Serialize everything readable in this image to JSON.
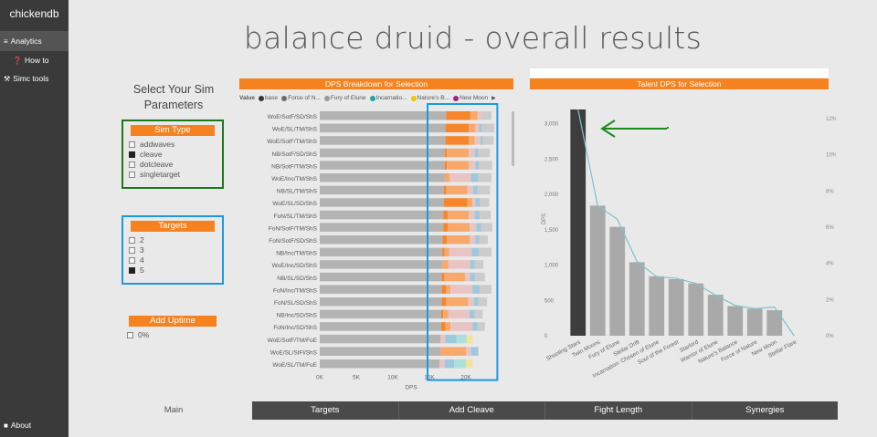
{
  "sidebar": {
    "brand": "chickendb",
    "items": [
      {
        "label": "Analytics",
        "icon": "bar-chart-icon",
        "glyph": "≡"
      },
      {
        "label": "How to",
        "icon": "help-icon",
        "glyph": "❓"
      },
      {
        "label": "Simc tools",
        "icon": "toolbox-icon",
        "glyph": "⚒"
      }
    ],
    "about": {
      "label": "About",
      "icon": "chat-icon",
      "glyph": "■"
    }
  },
  "page_title": "balance druid - overall results",
  "params_title": "Select Your Sim Parameters",
  "slicers": {
    "sim_type": {
      "title": "Sim Type",
      "options": [
        {
          "label": "addwaves",
          "checked": false
        },
        {
          "label": "cleave",
          "checked": true
        },
        {
          "label": "dotcleave",
          "checked": false
        },
        {
          "label": "singletarget",
          "checked": false
        }
      ]
    },
    "targets": {
      "title": "Targets",
      "options": [
        {
          "label": "2",
          "checked": false
        },
        {
          "label": "3",
          "checked": false
        },
        {
          "label": "4",
          "checked": false
        },
        {
          "label": "5",
          "checked": true
        }
      ]
    },
    "add_uptime": {
      "title": "Add Uptime",
      "options": [
        {
          "label": "0%",
          "checked": false
        }
      ]
    }
  },
  "highlight_colors": {
    "sim_type": "#1a7a1a",
    "targets": "#1b9ae0",
    "dps_highlight": "#1b9ae0",
    "arrow": "#1a8a1a"
  },
  "bottom_tabs": {
    "main": "Main",
    "tabs": [
      "Targets",
      "Add Cleave",
      "Fight Length",
      "Synergies"
    ]
  },
  "chart_data": [
    {
      "type": "bar",
      "title": "DPS Breakdown for Selection",
      "orientation": "horizontal",
      "stacked": true,
      "legend_title": "Value",
      "legend": [
        {
          "label": "base",
          "color": "#333333"
        },
        {
          "label": "Force of N...",
          "color": "#6e6e6e"
        },
        {
          "label": "Fury of Elune",
          "color": "#999999"
        },
        {
          "label": "Incarnatio...",
          "color": "#1aa8a0"
        },
        {
          "label": "Nature's B...",
          "color": "#f4c20d"
        },
        {
          "label": "New Moon",
          "color": "#a0208c"
        }
      ],
      "xlabel": "DPS",
      "xticks": [
        "0K",
        "5K",
        "10K",
        "15K",
        "20K"
      ],
      "xlim": [
        0,
        25000
      ],
      "categories": [
        "WoE/SotF/SD/ShS",
        "WoE/SL/TM/ShS",
        "WoE/SotF/TM/ShS",
        "NB/SotF/SD/ShS",
        "NB/SotF/TM/ShS",
        "WoE/Inc/TM/ShS",
        "NB/SL/TM/ShS",
        "WoE/SL/SD/ShS",
        "FoN/SL/TM/ShS",
        "FoN/SotF/TM/ShS",
        "FoN/SotF/SD/ShS",
        "NB/Inc/TM/ShS",
        "WoE/Inc/SD/ShS",
        "NB/SL/SD/ShS",
        "FoN/Inc/TM/ShS",
        "FoN/SL/SD/ShS",
        "NB/Inc/SD/ShS",
        "FoN/Inc/SD/ShS",
        "WoE/SotF/TM/FoE",
        "WoE/SL/StFl/ShS",
        "WoE/SL/TM/FoE"
      ],
      "segment_colors": [
        "#b3b3b3",
        "#f5862c",
        "#f7a86a",
        "#e8c4c4",
        "#9ec8dc",
        "#ade0db",
        "#f4e29a"
      ],
      "rows": [
        [
          17300,
          3300,
          1000,
          600,
          0,
          0,
          0,
          1300
        ],
        [
          17200,
          3200,
          900,
          500,
          400,
          0,
          0,
          1700
        ],
        [
          17200,
          3200,
          800,
          800,
          300,
          0,
          0,
          1500
        ],
        [
          17100,
          300,
          3000,
          800,
          500,
          0,
          0,
          1600
        ],
        [
          17100,
          300,
          3000,
          900,
          500,
          0,
          0,
          1800
        ],
        [
          17100,
          0,
          700,
          2900,
          1000,
          0,
          0,
          1800
        ],
        [
          17000,
          300,
          2900,
          800,
          600,
          0,
          0,
          1700
        ],
        [
          17000,
          3200,
          700,
          400,
          600,
          0,
          0,
          1300
        ],
        [
          16900,
          600,
          2900,
          800,
          700,
          0,
          0,
          1500
        ],
        [
          16900,
          600,
          3000,
          900,
          700,
          0,
          0,
          1500
        ],
        [
          16800,
          600,
          3100,
          800,
          500,
          0,
          0,
          1200
        ],
        [
          16800,
          300,
          600,
          3100,
          1000,
          0,
          0,
          1700
        ],
        [
          16800,
          0,
          800,
          3000,
          600,
          0,
          0,
          1200
        ],
        [
          16700,
          300,
          2900,
          700,
          600,
          0,
          0,
          1400
        ],
        [
          16700,
          600,
          600,
          3000,
          1000,
          0,
          0,
          1600
        ],
        [
          16700,
          600,
          3000,
          800,
          600,
          0,
          0,
          1200
        ],
        [
          16600,
          300,
          700,
          2900,
          700,
          0,
          0,
          1100
        ],
        [
          16600,
          600,
          700,
          3000,
          700,
          0,
          0,
          1000
        ],
        [
          16500,
          0,
          0,
          700,
          1500,
          1400,
          800,
          0
        ],
        [
          16500,
          0,
          3500,
          700,
          1000,
          0,
          0,
          0
        ],
        [
          16400,
          0,
          0,
          700,
          1300,
          1600,
          900,
          0
        ]
      ]
    },
    {
      "type": "bar",
      "title": "Talent DPS for Selection",
      "categories": [
        "Shooting Stars",
        "Twin Moons",
        "Fury of Elune",
        "Stellar Drift",
        "Incarnation: Chosen of Elune",
        "Soul of the Forest",
        "Starlord",
        "Warrior of Elune",
        "Nature's Balance",
        "Force of Nature",
        "New Moon",
        "Stellar Flare"
      ],
      "values": [
        3200,
        1840,
        1540,
        1040,
        840,
        800,
        740,
        580,
        420,
        380,
        360,
        0
      ],
      "highlight_index": 0,
      "ylabel": "DPS",
      "ylim": [
        0,
        3200
      ],
      "yticks": [
        "0",
        "500",
        "1,000",
        "1,500",
        "2,000",
        "2,500",
        "3,000"
      ],
      "y2ticks": [
        "0%",
        "2%",
        "4%",
        "6%",
        "8%",
        "10%",
        "12%"
      ],
      "line_series": {
        "values": [
          13.4,
          7.7,
          6.9,
          4.4,
          3.5,
          3.4,
          3.1,
          2.4,
          1.8,
          1.6,
          1.7,
          0.0
        ],
        "y2lim": [
          0,
          13.4
        ]
      },
      "colors": {
        "bar": "#a9a9a9",
        "highlight": "#3d3d3d",
        "line": "#7cc4c9"
      }
    }
  ]
}
